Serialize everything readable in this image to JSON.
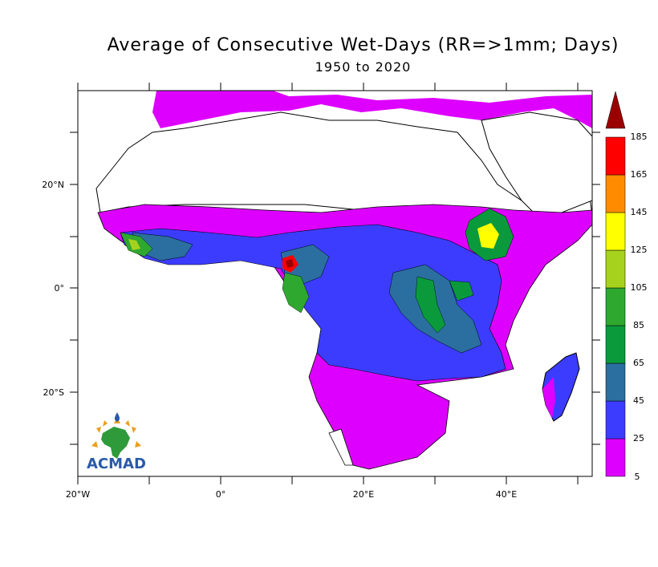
{
  "title": "Average of Consecutive Wet-Days (RR=>1mm; Days)",
  "subtitle": "1950 to 2020",
  "x_ticks": [
    "20°W",
    "0°",
    "20°E",
    "40°E"
  ],
  "y_ticks": [
    "20°N",
    "0°",
    "20°S"
  ],
  "legend": {
    "labels": [
      "5",
      "25",
      "45",
      "65",
      "85",
      "105",
      "125",
      "145",
      "165",
      "185"
    ],
    "colors": [
      "#dd00ff",
      "#3c3cff",
      "#2a6fa0",
      "#0a9a3c",
      "#2fa82f",
      "#a6d21e",
      "#ffff00",
      "#ff8c00",
      "#ff0000",
      "#9b0000"
    ]
  },
  "logo": "ACMAD",
  "colors": {
    "magenta": "#dd00ff",
    "blue": "#3c3cff",
    "steel": "#2a6fa0",
    "green": "#0a9a3c",
    "lightgreen": "#2fa82f",
    "yellowgreen": "#a6d21e",
    "yellow": "#ffff00",
    "orange": "#ff8c00",
    "red": "#ff0000",
    "darkred": "#9b0000"
  }
}
